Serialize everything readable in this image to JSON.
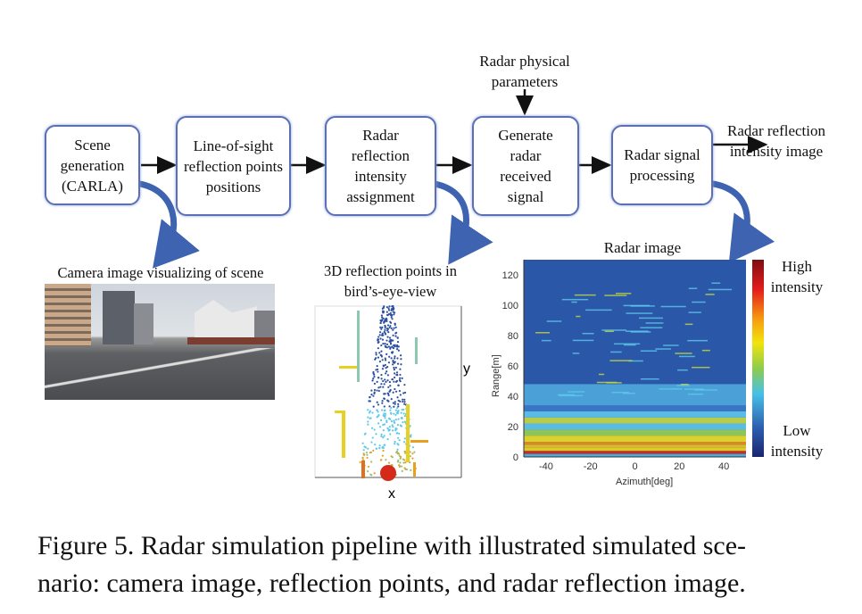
{
  "pipeline": {
    "boxes": [
      "Scene generation (CARLA)",
      "Line-of-sight reflection points positions",
      "Radar reflection intensity assignment",
      "Generate radar received signal",
      "Radar signal processing"
    ],
    "input_label": "Radar physical parameters",
    "output_label": "Radar reflection intensity image"
  },
  "panels": {
    "camera_label": "Camera image visualizing of scene",
    "points_label": "3D reflection points in bird’s-eye-view",
    "points_xlabel": "x",
    "points_ylabel": "y",
    "radar_title": "Radar image",
    "radar_xlabel": "Azimuth[deg]",
    "radar_ylabel": "Range[m]",
    "radar_xticks": [
      "-40",
      "-20",
      "0",
      "20",
      "40"
    ],
    "radar_yticks": [
      "0",
      "20",
      "40",
      "60",
      "80",
      "100",
      "120"
    ],
    "colorbar_high": "High intensity",
    "colorbar_low": "Low intensity"
  },
  "colors": {
    "box_border": "#5b6fb5",
    "curved_arrow": "#3e63b0",
    "radar_bg": "#2b57a8"
  },
  "caption": {
    "line1": "Figure 5. Radar simulation pipeline with illustrated simulated sce-",
    "line2": "nario: camera image, reflection points, and radar reflection image."
  }
}
